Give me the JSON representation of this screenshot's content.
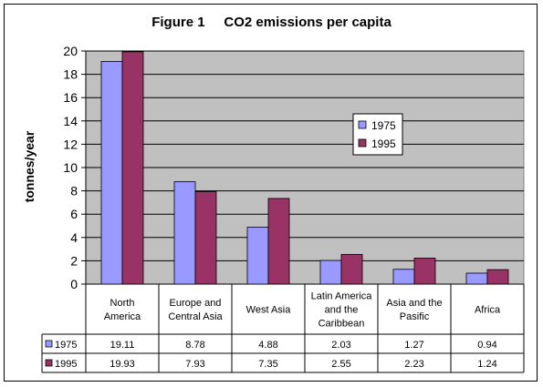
{
  "chart_data": {
    "type": "bar",
    "title": "Figure 1     CO2 emissions per capita",
    "ylabel": "tonnes/year",
    "xlabel": "",
    "ylim": [
      0,
      20
    ],
    "yticks": [
      0,
      2,
      4,
      6,
      8,
      10,
      12,
      14,
      16,
      18,
      20
    ],
    "grid": true,
    "legend_position": "right, inside plot area",
    "plot_background": "#C0C0C0",
    "categories": [
      [
        "North",
        "America"
      ],
      [
        "Europe and",
        "Central Asia"
      ],
      [
        "West Asia"
      ],
      [
        "Latin America",
        "and the",
        "Caribbean"
      ],
      [
        "Asia and the",
        "Pasific"
      ],
      [
        "Africa"
      ]
    ],
    "series": [
      {
        "name": "1975",
        "color": "#9999FF",
        "values": [
          19.11,
          8.78,
          4.88,
          2.03,
          1.27,
          0.94
        ]
      },
      {
        "name": "1995",
        "color": "#993366",
        "values": [
          19.93,
          7.93,
          7.35,
          2.55,
          2.23,
          1.24
        ]
      }
    ],
    "table_values": [
      [
        "19.11",
        "8.78",
        "4.88",
        "2.03",
        "1.27",
        "0.94"
      ],
      [
        "19.93",
        "7.93",
        "7.35",
        "2.55",
        "2.23",
        "1.24"
      ]
    ]
  }
}
